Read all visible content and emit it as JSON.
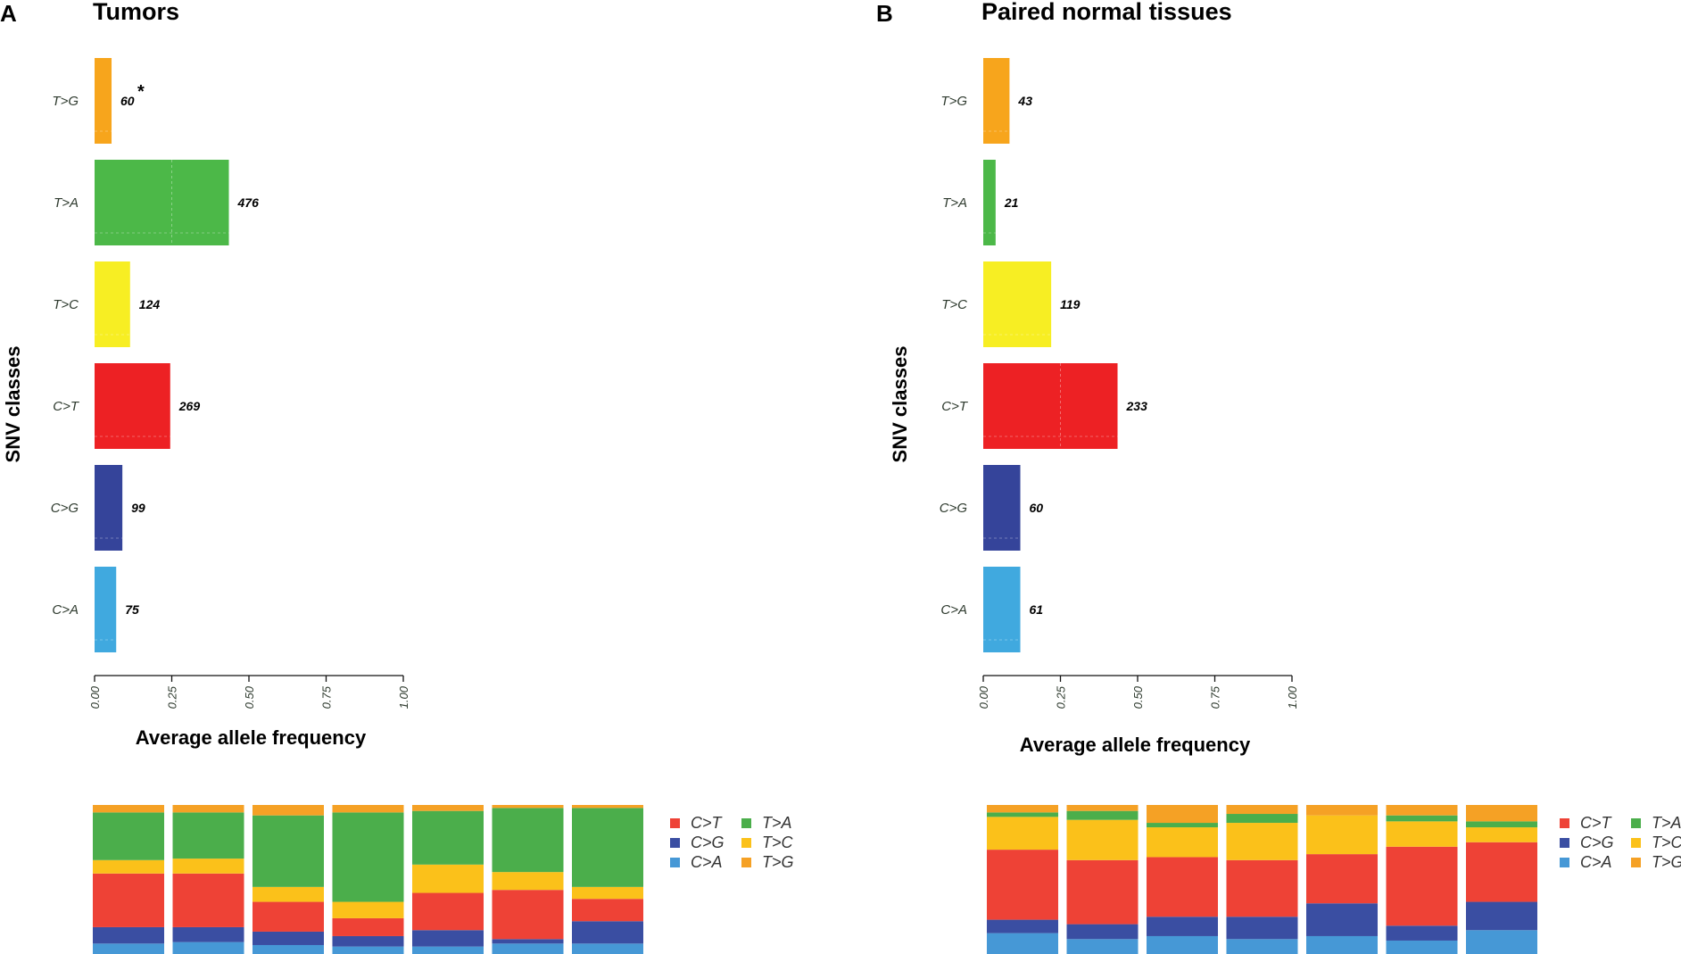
{
  "colors": {
    "C>A": "#40a9df",
    "C>G": "#35449a",
    "C>T": "#ed2124",
    "T>C": "#f7ee23",
    "T>A": "#4cb848",
    "T>G": "#f7a51c"
  },
  "stack_colors": {
    "C>A": "#4698d6",
    "C>G": "#3a4ea2",
    "C>T": "#ee4236",
    "T>C": "#fbc11a",
    "T>A": "#4bae4b",
    "T>G": "#f5a125"
  },
  "chart_data": [
    {
      "panel": "A",
      "type": "bar",
      "orientation": "horizontal",
      "title": "Tumors",
      "xlabel": "Average allele frequency",
      "ylabel": "SNV classes",
      "xlim": [
        0,
        1
      ],
      "xticks": [
        "0.00",
        "0.25",
        "0.50",
        "0.75",
        "1.00"
      ],
      "categories": [
        "C>A",
        "C>G",
        "C>T",
        "T>C",
        "T>A",
        "T>G"
      ],
      "values": [
        0.07,
        0.09,
        0.245,
        0.115,
        0.435,
        0.055
      ],
      "counts": [
        "75",
        "99",
        "269",
        "124",
        "476",
        "60"
      ],
      "annotation": {
        "category": "T>G",
        "text": "*"
      }
    },
    {
      "panel": "B",
      "type": "bar",
      "orientation": "horizontal",
      "title": "Paired normal tissues",
      "xlabel": "Average allele frequency",
      "ylabel": "SNV classes",
      "xlim": [
        0,
        1
      ],
      "xticks": [
        "0.00",
        "0.25",
        "0.50",
        "0.75",
        "1.00"
      ],
      "categories": [
        "C>A",
        "C>G",
        "C>T",
        "T>C",
        "T>A",
        "T>G"
      ],
      "values": [
        0.12,
        0.12,
        0.435,
        0.22,
        0.04,
        0.085
      ],
      "counts": [
        "61",
        "60",
        "233",
        "119",
        "21",
        "43"
      ]
    },
    {
      "panel": "A",
      "type": "stacked_bar",
      "stack_order": [
        "C>A",
        "C>G",
        "C>T",
        "T>C",
        "T>A",
        "T>G"
      ],
      "samples": [
        [
          0.07,
          0.11,
          0.36,
          0.09,
          0.32,
          0.05
        ],
        [
          0.08,
          0.1,
          0.36,
          0.1,
          0.31,
          0.05
        ],
        [
          0.06,
          0.09,
          0.2,
          0.1,
          0.48,
          0.07
        ],
        [
          0.05,
          0.07,
          0.12,
          0.11,
          0.6,
          0.05
        ],
        [
          0.05,
          0.11,
          0.25,
          0.19,
          0.36,
          0.04
        ],
        [
          0.07,
          0.03,
          0.33,
          0.12,
          0.43,
          0.02
        ],
        [
          0.07,
          0.15,
          0.15,
          0.08,
          0.53,
          0.02
        ]
      ]
    },
    {
      "panel": "B",
      "type": "stacked_bar",
      "stack_order": [
        "C>A",
        "C>G",
        "C>T",
        "T>C",
        "T>A",
        "T>G"
      ],
      "samples": [
        [
          0.14,
          0.09,
          0.47,
          0.22,
          0.03,
          0.05
        ],
        [
          0.1,
          0.1,
          0.43,
          0.27,
          0.06,
          0.04
        ],
        [
          0.12,
          0.13,
          0.4,
          0.2,
          0.03,
          0.12
        ],
        [
          0.1,
          0.15,
          0.38,
          0.25,
          0.06,
          0.06
        ],
        [
          0.12,
          0.22,
          0.33,
          0.26,
          0.0,
          0.07
        ],
        [
          0.09,
          0.1,
          0.53,
          0.17,
          0.04,
          0.07
        ],
        [
          0.16,
          0.19,
          0.4,
          0.1,
          0.04,
          0.11
        ]
      ]
    }
  ],
  "legend": {
    "entries": [
      {
        "key": "C>T",
        "label": "C>T"
      },
      {
        "key": "T>A",
        "label": "T>A"
      },
      {
        "key": "C>G",
        "label": "C>G"
      },
      {
        "key": "T>C",
        "label": "T>C"
      },
      {
        "key": "C>A",
        "label": "C>A"
      },
      {
        "key": "T>G",
        "label": "T>G"
      }
    ]
  }
}
